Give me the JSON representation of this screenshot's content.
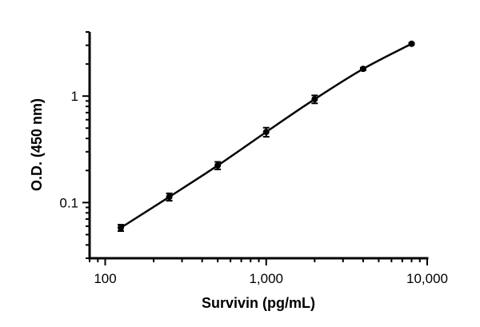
{
  "chart_data": {
    "type": "line",
    "title": "",
    "xlabel": "Survivin (pg/mL)",
    "ylabel": "O.D. (450 nm)",
    "x_scale": "log",
    "y_scale": "log",
    "xlim": [
      80,
      10000
    ],
    "ylim": [
      0.03,
      4
    ],
    "x_ticks": [
      {
        "value": 100,
        "label": "100"
      },
      {
        "value": 1000,
        "label": "1,000"
      },
      {
        "value": 10000,
        "label": "10,000"
      }
    ],
    "y_ticks": [
      {
        "value": 0.1,
        "label": "0.1"
      },
      {
        "value": 1,
        "label": "1"
      }
    ],
    "grid": false,
    "series": [
      {
        "color": "#000000",
        "x": [
          125,
          250,
          500,
          1000,
          2000,
          4000,
          8000
        ],
        "y": [
          0.058,
          0.113,
          0.223,
          0.46,
          0.935,
          1.8,
          3.1
        ],
        "error": [
          0.004,
          0.009,
          0.018,
          0.045,
          0.08,
          0.05,
          0.05
        ]
      }
    ]
  }
}
